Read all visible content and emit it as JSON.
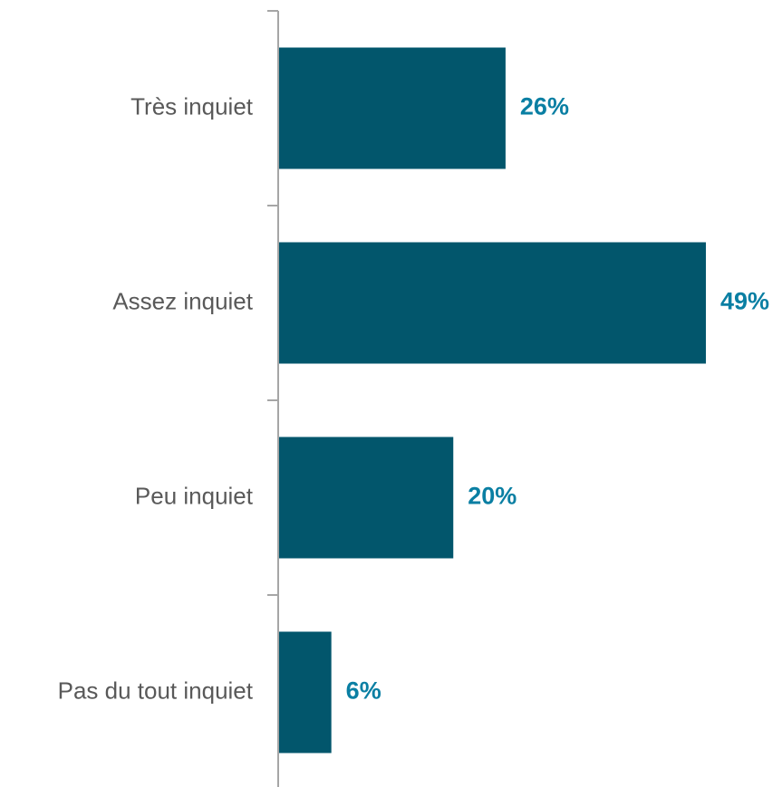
{
  "chart_data": {
    "type": "bar",
    "orientation": "horizontal",
    "categories": [
      "Très inquiet",
      "Assez inquiet",
      "Peu inquiet",
      "Pas du tout inquiet"
    ],
    "values": [
      26,
      49,
      20,
      6
    ],
    "data_labels": [
      "26%",
      "49%",
      "20%",
      "6%"
    ],
    "title": "",
    "xlabel": "",
    "ylabel": "",
    "xlim": [
      0,
      49
    ],
    "grid": false,
    "legend": "none",
    "colors": {
      "bar": "#02566c",
      "value_label": "#0a7fa3",
      "category_label": "#595959",
      "axis": "#a6a6a6"
    }
  }
}
